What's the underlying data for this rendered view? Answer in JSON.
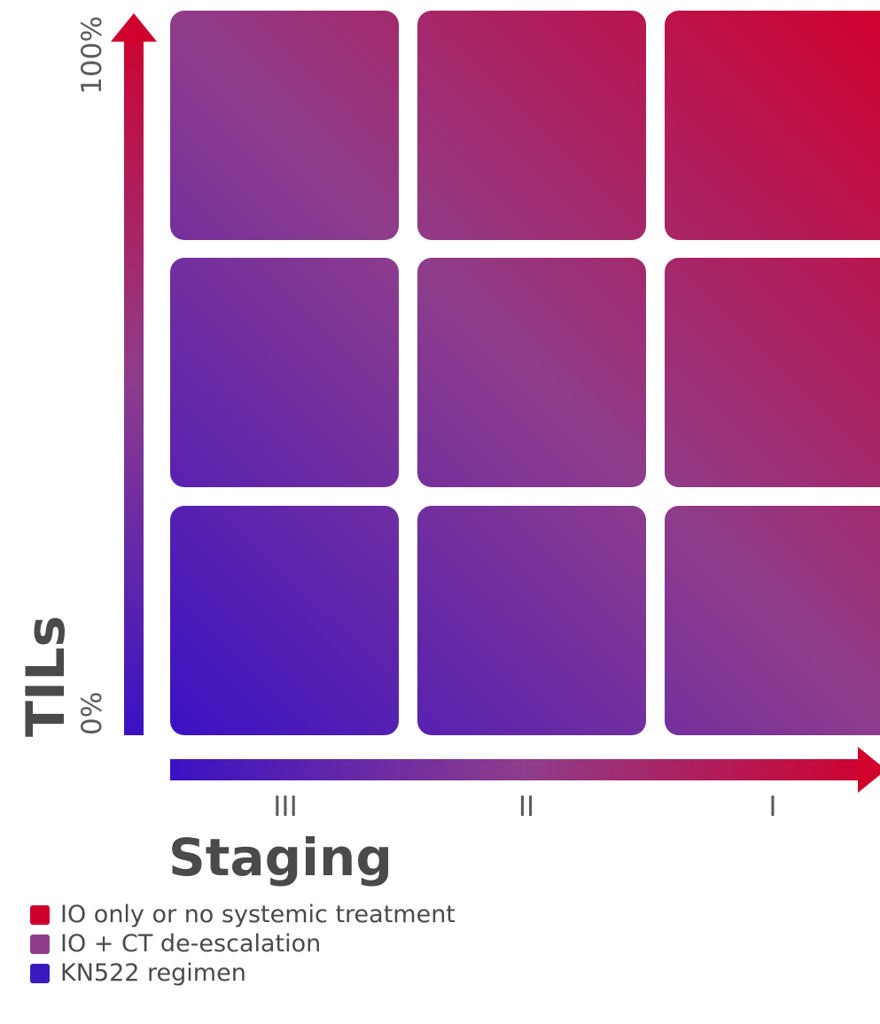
{
  "y_axis": {
    "title": "TILs",
    "top_label": "100%",
    "bottom_label": "0%"
  },
  "x_axis": {
    "title": "Staging",
    "ticks": [
      "III",
      "II",
      "I"
    ]
  },
  "grid": {
    "rows": 3,
    "columns": 3
  },
  "colors": {
    "red": "#d0002d",
    "purple": "#8e3d8b",
    "blue": "#3a1abf"
  },
  "legend": [
    {
      "label": "IO only or no systemic treatment",
      "color": "#d0002d"
    },
    {
      "label": "IO + CT de-escalation",
      "color": "#8e3d8b"
    },
    {
      "label": "KN522 regimen",
      "color": "#3a1abf"
    }
  ]
}
